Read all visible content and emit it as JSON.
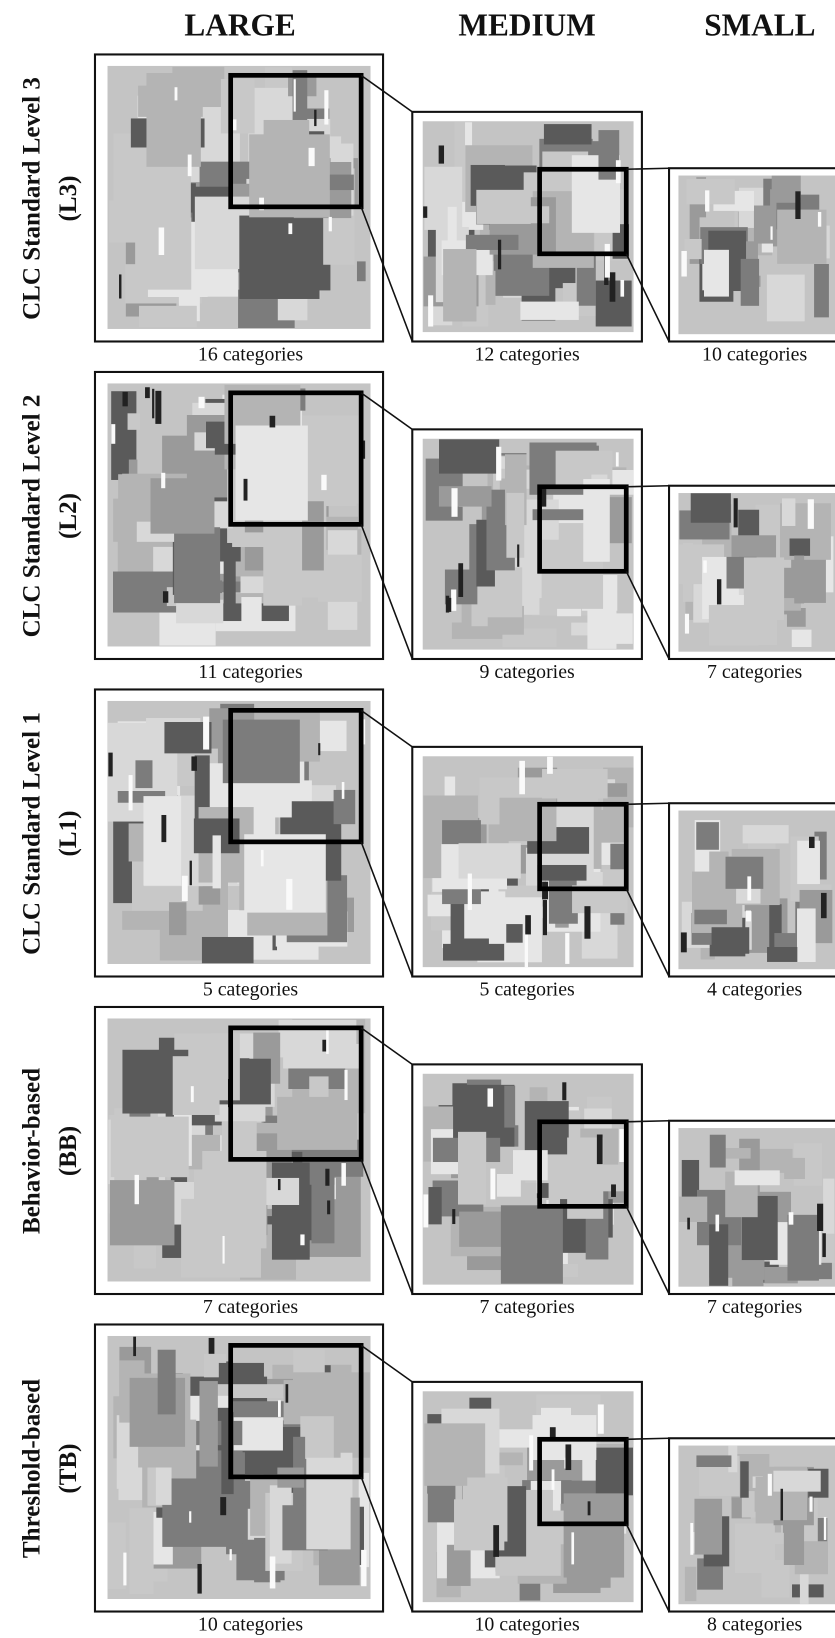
{
  "headers": [
    "LARGE",
    "MEDIUM",
    "SMALL"
  ],
  "rows": [
    {
      "label": [
        "CLC Standard Level 3",
        "(L3)"
      ],
      "captions": [
        "16 categories",
        "12 categories",
        "10 categories"
      ]
    },
    {
      "label": [
        "CLC Standard Level 2",
        "(L2)"
      ],
      "captions": [
        "11 categories",
        "9 categories",
        "7 categories"
      ]
    },
    {
      "label": [
        "CLC Standard Level 1",
        "(L1)"
      ],
      "captions": [
        "5 categories",
        "5 categories",
        "4 categories"
      ]
    },
    {
      "label": [
        "Behavior-based",
        "(BB)"
      ],
      "captions": [
        "7 categories",
        "7 categories",
        "7 categories"
      ]
    },
    {
      "label": [
        "Threshold-based",
        "(TB)"
      ],
      "captions": [
        "10 categories",
        "10 categories",
        "8 categories"
      ]
    }
  ]
}
